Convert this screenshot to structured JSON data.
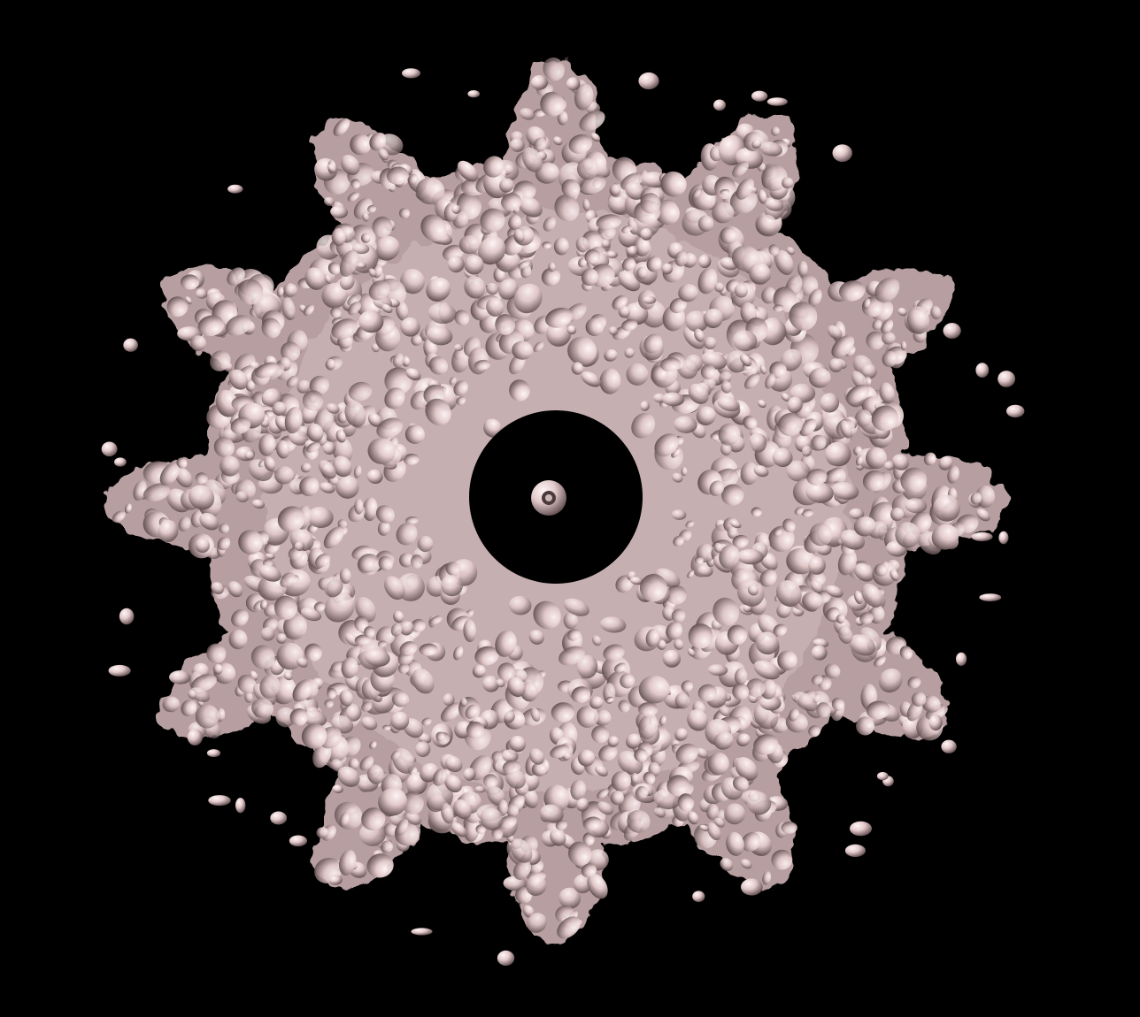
{
  "scene": {
    "background_color": "#000000",
    "surface_color": "#E6CFCF",
    "surface_shadow_color": "#6E5A5C",
    "surface_highlight_color": "#FFF4F4",
    "subunit_count": 12
  }
}
